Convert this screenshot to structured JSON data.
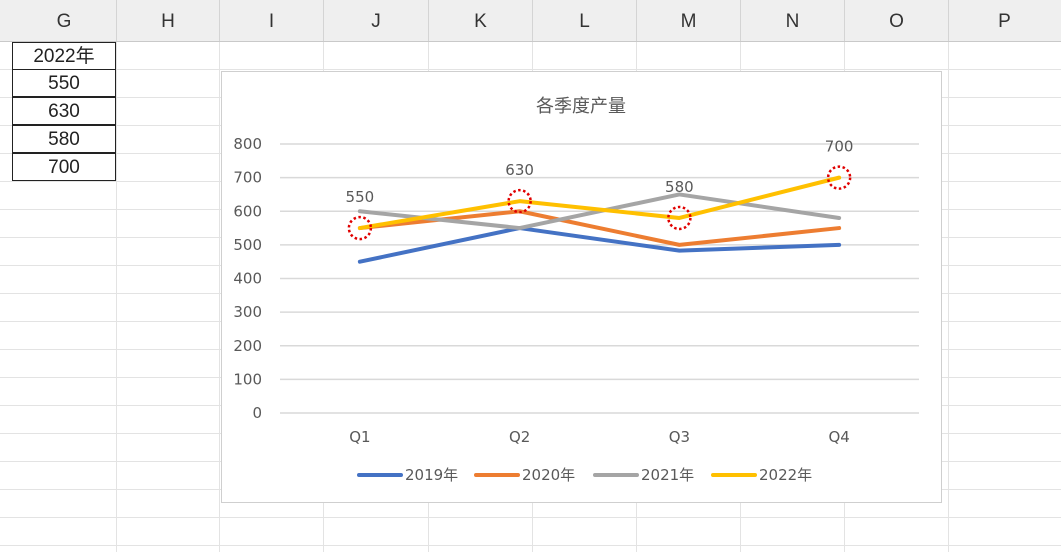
{
  "sheet": {
    "columns": [
      "G",
      "H",
      "I",
      "J",
      "K",
      "L",
      "M",
      "N",
      "O",
      "P"
    ],
    "cells_g": [
      "2022年",
      "550",
      "630",
      "580",
      "700"
    ]
  },
  "chart_data": {
    "type": "line",
    "title": "各季度产量",
    "categories": [
      "Q1",
      "Q2",
      "Q3",
      "Q4"
    ],
    "ylim": [
      0,
      800
    ],
    "yticks": [
      "0",
      "100",
      "200",
      "300",
      "400",
      "500",
      "600",
      "700",
      "800"
    ],
    "grid": true,
    "legend": "bottom",
    "series": [
      {
        "name": "2019年",
        "values": [
          450,
          550,
          483,
          500
        ],
        "color": "#4472c4"
      },
      {
        "name": "2020年",
        "values": [
          550,
          600,
          500,
          550
        ],
        "color": "#ed7d31"
      },
      {
        "name": "2021年",
        "values": [
          600,
          550,
          650,
          580
        ],
        "color": "#a5a5a5"
      },
      {
        "name": "2022年",
        "values": [
          550,
          630,
          580,
          700
        ],
        "color": "#ffc000"
      }
    ],
    "data_labels": [
      "550",
      "630",
      "580",
      "700"
    ],
    "highlight_color": "#e00000"
  }
}
